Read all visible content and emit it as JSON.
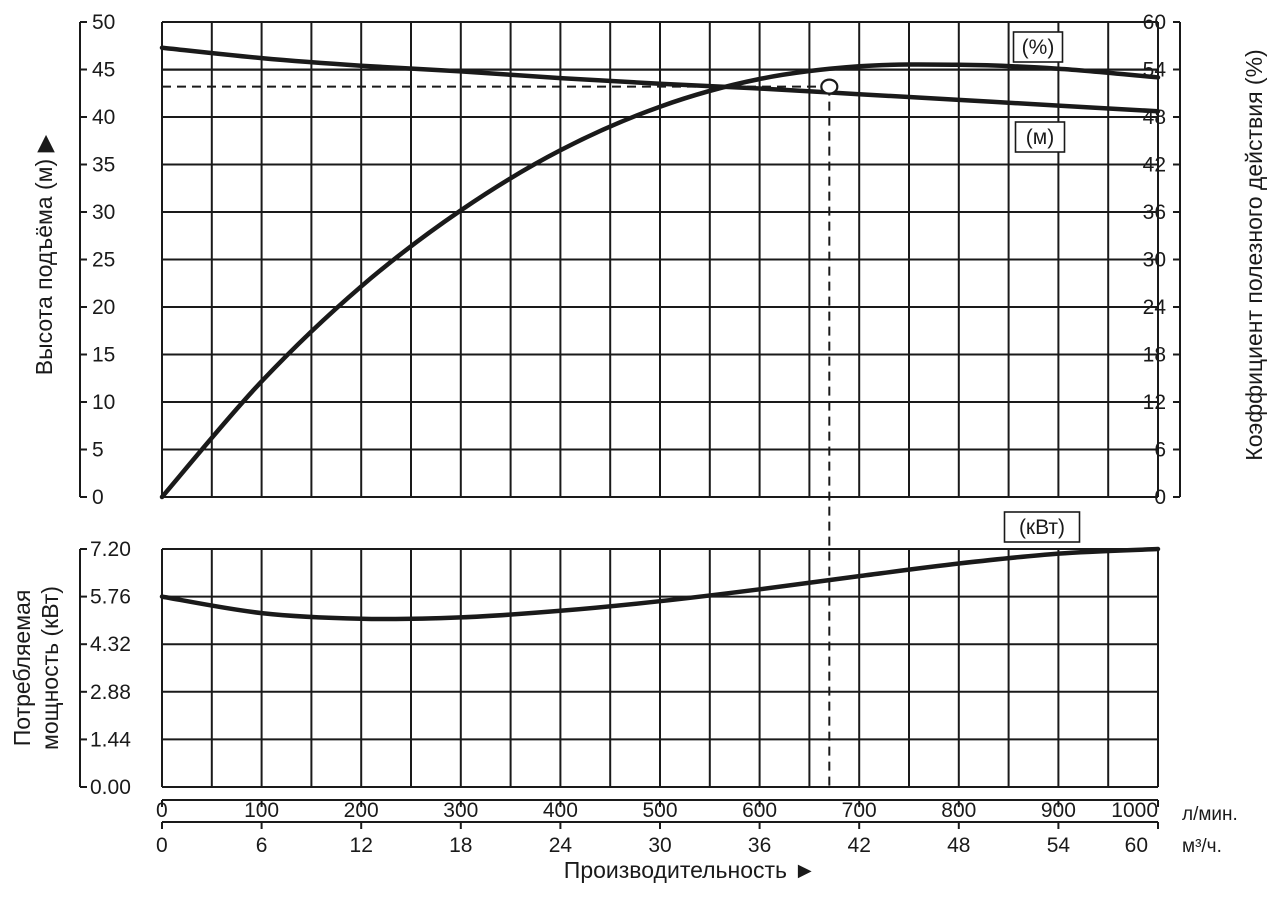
{
  "chart_data": {
    "type": "line",
    "x_label": "Производительность ►",
    "x_axis_primary": {
      "unit": "л/мин.",
      "range": [
        0,
        1000
      ],
      "ticks": [
        "0",
        "100",
        "200",
        "300",
        "400",
        "500",
        "600",
        "700",
        "800",
        "900",
        "1000"
      ]
    },
    "x_axis_secondary": {
      "unit": "м³/ч.",
      "ticks": [
        "0",
        "6",
        "12",
        "18",
        "24",
        "30",
        "36",
        "42",
        "48",
        "54",
        "60"
      ]
    },
    "head_panel": {
      "ylabel_left": "Высота подъёма (м) ▶",
      "ylabel_right": "Коэффициент полезного действия (%)",
      "left_ylim": [
        0,
        50
      ],
      "left_ticks": [
        "0",
        "5",
        "10",
        "15",
        "20",
        "25",
        "30",
        "35",
        "40",
        "45",
        "50"
      ],
      "right_ylim": [
        0,
        60
      ],
      "right_ticks": [
        "0",
        "6",
        "12",
        "18",
        "24",
        "30",
        "36",
        "42",
        "48",
        "54",
        "60"
      ],
      "series": [
        {
          "name": "(м)",
          "axis": "left",
          "x": [
            0,
            100,
            200,
            300,
            400,
            500,
            600,
            700,
            800,
            900,
            1000
          ],
          "y": [
            47.3,
            46.2,
            45.4,
            44.8,
            44.1,
            43.5,
            43.0,
            42.4,
            41.8,
            41.2,
            40.6
          ]
        },
        {
          "name": "(%)",
          "axis": "right",
          "x": [
            0,
            100,
            200,
            300,
            400,
            500,
            600,
            700,
            800,
            900,
            1000
          ],
          "y": [
            0,
            14.6,
            26.6,
            36.2,
            43.8,
            49.3,
            52.8,
            54.4,
            54.6,
            54.1,
            53.0
          ]
        }
      ]
    },
    "power_panel": {
      "ylabel": "Потребляемая мощность (кВт)",
      "ylim": [
        0,
        7.2
      ],
      "ticks": [
        "0.00",
        "1.44",
        "2.88",
        "4.32",
        "5.76",
        "7.20"
      ],
      "series": [
        {
          "name": "(кВт)",
          "x": [
            0,
            100,
            200,
            300,
            400,
            500,
            600,
            700,
            800,
            900,
            1000
          ],
          "y": [
            5.76,
            5.26,
            5.09,
            5.13,
            5.33,
            5.62,
            5.98,
            6.38,
            6.76,
            7.06,
            7.2
          ]
        }
      ]
    },
    "operating_point": {
      "x": 670,
      "head": 43.2
    },
    "grid": true
  }
}
